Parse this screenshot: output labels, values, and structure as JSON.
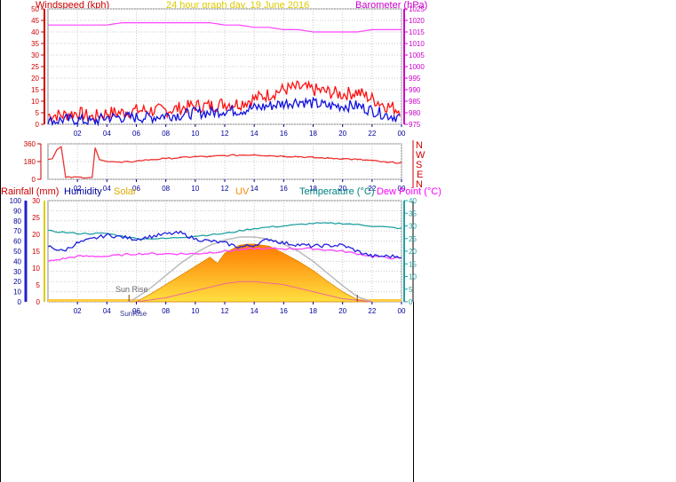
{
  "chart_data": [
    {
      "type": "line",
      "title": "24 hour graph day, 19 June 2016",
      "left_axis": {
        "label": "Windspeed (kph)",
        "ylim": [
          0,
          50
        ],
        "ticks": [
          0,
          5,
          10,
          15,
          20,
          25,
          30,
          35,
          40,
          45,
          50
        ]
      },
      "right_axis": {
        "label": "Barometer (hPa)",
        "ylim": [
          975,
          1025
        ],
        "ticks": [
          975,
          980,
          985,
          990,
          995,
          1000,
          1005,
          1010,
          1015,
          1020,
          1025
        ]
      },
      "x_ticks": [
        "02",
        "04",
        "06",
        "08",
        "10",
        "12",
        "14",
        "16",
        "18",
        "20",
        "22",
        "00"
      ],
      "series": [
        {
          "name": "Barometer (hPa)",
          "color": "#ff44ff",
          "axis": "right",
          "x": [
            0,
            1,
            2,
            3,
            4,
            5,
            6,
            7,
            8,
            9,
            10,
            11,
            12,
            13,
            14,
            15,
            16,
            17,
            18,
            19,
            20,
            21,
            22,
            23,
            24
          ],
          "values": [
            1018,
            1018,
            1018,
            1018,
            1018,
            1019,
            1019,
            1019,
            1019,
            1019,
            1019,
            1019,
            1018,
            1018,
            1017,
            1017,
            1016,
            1016,
            1015,
            1015,
            1015,
            1015,
            1016,
            1016,
            1016
          ]
        },
        {
          "name": "Gust (kph)",
          "color": "#ff1010",
          "axis": "left",
          "x": [
            0,
            1,
            2,
            3,
            4,
            5,
            6,
            7,
            8,
            9,
            10,
            11,
            12,
            13,
            14,
            15,
            16,
            17,
            18,
            19,
            20,
            21,
            22,
            23,
            24
          ],
          "values": [
            4,
            4,
            5,
            3,
            5,
            5,
            6,
            6,
            6,
            7,
            8,
            8,
            9,
            9,
            11,
            13,
            15,
            16,
            15,
            14,
            13,
            14,
            11,
            8,
            6
          ]
        },
        {
          "name": "Wind speed (kph)",
          "color": "#1010e0",
          "axis": "left",
          "x": [
            0,
            1,
            2,
            3,
            4,
            5,
            6,
            7,
            8,
            9,
            10,
            11,
            12,
            13,
            14,
            15,
            16,
            17,
            18,
            19,
            20,
            21,
            22,
            23,
            24
          ],
          "values": [
            1,
            2,
            2,
            1,
            3,
            3,
            3,
            3,
            4,
            4,
            5,
            5,
            6,
            6,
            7,
            8,
            9,
            10,
            9,
            8,
            8,
            8,
            6,
            4,
            3
          ]
        }
      ]
    },
    {
      "type": "line",
      "axis_label": "N W S E N",
      "ylim": [
        0,
        360
      ],
      "ticks": [
        0,
        180,
        360
      ],
      "x_ticks": [
        "02",
        "04",
        "06",
        "08",
        "10",
        "12",
        "14",
        "16",
        "18",
        "20",
        "22",
        "00"
      ],
      "series": [
        {
          "name": "Wind direction",
          "color": "#ee3333",
          "x": [
            0,
            0.3,
            0.6,
            0.9,
            1.2,
            3.0,
            3.2,
            3.5,
            4,
            5,
            6,
            7,
            8,
            9,
            10,
            11,
            12,
            13,
            14,
            15,
            16,
            17,
            18,
            19,
            20,
            21,
            22,
            23,
            24
          ],
          "values": [
            200,
            210,
            300,
            330,
            20,
            20,
            320,
            200,
            180,
            170,
            185,
            200,
            210,
            220,
            230,
            230,
            240,
            245,
            250,
            240,
            235,
            230,
            220,
            215,
            210,
            200,
            190,
            170,
            170
          ]
        }
      ]
    },
    {
      "type": "line",
      "legend": [
        "Rainfall (mm)",
        "Humidity",
        "Solar",
        "UV",
        "Temperature (°C)",
        "Dew Point (°C)"
      ],
      "legend_colors": [
        "#cc0000",
        "#000099",
        "#ddaa00",
        "#ff8800",
        "#008080",
        "#ff00ff"
      ],
      "left_axis_rain": {
        "ticks": [
          0,
          5,
          10,
          15,
          20,
          25,
          30
        ],
        "ylim": [
          0,
          30
        ]
      },
      "left_axis_humidity": {
        "ticks": [
          0,
          10,
          20,
          30,
          40,
          50,
          60,
          70,
          80,
          90,
          100
        ],
        "ylim": [
          0,
          100
        ]
      },
      "right_axis_temperature": {
        "ticks": [
          0,
          5,
          10,
          15,
          20,
          25,
          30,
          35,
          40
        ],
        "ylim": [
          0,
          40
        ]
      },
      "x_ticks": [
        "02",
        "04",
        "06",
        "08",
        "10",
        "12",
        "14",
        "16",
        "18",
        "20",
        "22",
        "00"
      ],
      "annotations": [
        "Sun Rise",
        "SunRise"
      ],
      "series": [
        {
          "name": "Temperature (°C)",
          "color": "#20a0a0",
          "axis": "temperature",
          "x": [
            0,
            2,
            4,
            6,
            8,
            10,
            12,
            14,
            16,
            18,
            20,
            22,
            24
          ],
          "values": [
            28,
            27,
            27,
            25,
            25,
            26,
            27,
            29,
            30,
            31,
            31,
            30,
            29
          ]
        },
        {
          "name": "Humidity",
          "color": "#2020e0",
          "axis": "humidity",
          "x": [
            0,
            1,
            2,
            4,
            6,
            8,
            9,
            10,
            11,
            12,
            13,
            14,
            15,
            16,
            18,
            20,
            21,
            22,
            24
          ],
          "values": [
            55,
            50,
            58,
            66,
            62,
            67,
            68,
            62,
            60,
            58,
            54,
            56,
            62,
            58,
            55,
            56,
            50,
            45,
            45
          ]
        },
        {
          "name": "Dew Point (°C)",
          "color": "#ff44ff",
          "axis": "temperature",
          "x": [
            0,
            2,
            4,
            6,
            8,
            10,
            12,
            14,
            16,
            18,
            20,
            22,
            24
          ],
          "values": [
            16,
            18,
            18,
            19,
            19,
            19,
            20,
            21,
            21,
            21,
            20,
            18,
            17
          ]
        },
        {
          "name": "Solar",
          "color": "#ffaa00",
          "axis": "humidity",
          "type": "area",
          "x": [
            5.5,
            6,
            7,
            8,
            9,
            10,
            11,
            11.5,
            12,
            13,
            13.5,
            14,
            15,
            16,
            17,
            18,
            19,
            20,
            21,
            22
          ],
          "values": [
            0,
            0,
            8,
            17,
            26,
            35,
            44,
            38,
            48,
            56,
            57,
            57,
            55,
            48,
            40,
            31,
            20,
            10,
            2,
            0
          ]
        },
        {
          "name": "Solar max",
          "color": "#bbbbbb",
          "axis": "humidity",
          "x": [
            5.5,
            6,
            7,
            8,
            9,
            10,
            11,
            12,
            13,
            14,
            15,
            16,
            17,
            18,
            19,
            20,
            21,
            22
          ],
          "values": [
            0,
            4,
            14,
            26,
            38,
            48,
            56,
            61,
            64,
            64,
            62,
            57,
            50,
            40,
            28,
            16,
            5,
            0
          ]
        },
        {
          "name": "UV",
          "color": "#ee6699",
          "axis": "humidity",
          "x": [
            6,
            8,
            10,
            12,
            13,
            14,
            16,
            18,
            20,
            22
          ],
          "values": [
            0,
            4,
            11,
            18,
            20,
            20,
            17,
            10,
            3,
            0
          ]
        }
      ]
    }
  ]
}
